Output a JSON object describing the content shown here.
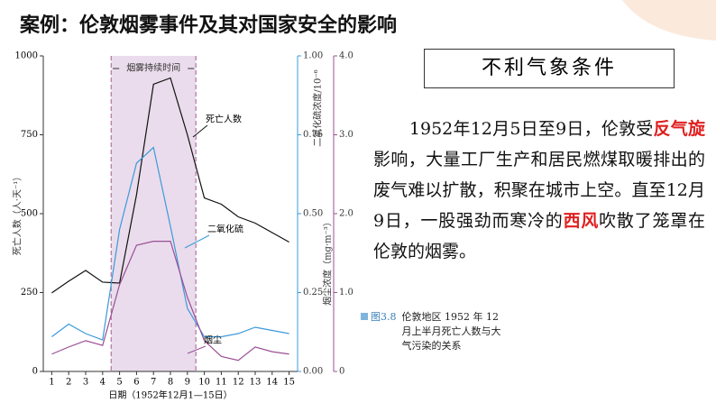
{
  "slide_title": "案例：伦敦烟雾事件及其对国家安全的影响",
  "box_title": "不利气象条件",
  "paragraph": [
    {
      "text": "1952年12月5日至9日，伦敦受",
      "red": false
    },
    {
      "text": "反气旋",
      "red": true
    },
    {
      "text": "影响，大量工厂生产和居民燃煤取暖排出的废气难以扩散，积聚在城市上空。直至12月9日，一股强劲而寒冷的",
      "red": false
    },
    {
      "text": "西风",
      "red": true
    },
    {
      "text": "吹散了笼罩在伦敦的烟雾。",
      "red": false
    }
  ],
  "caption": {
    "number": "图3.8",
    "text": "伦敦地区 1952 年 12 月上半月死亡人数与大气污染的关系"
  },
  "chart_data": {
    "type": "line",
    "x_label": "日期（1952年12月1—15日）",
    "y_label": "死亡人数（人·天⁻¹）",
    "y2_label": "二氧化硫浓度/10⁻⁶",
    "y3_label": "烟尘浓度（mg·m⁻³）",
    "shade_label": "烟雾持续时间",
    "shade": [
      4.5,
      9.5
    ],
    "shade_color": "#eadcec",
    "x": [
      1,
      2,
      3,
      4,
      5,
      6,
      7,
      8,
      9,
      10,
      11,
      12,
      13,
      14,
      15
    ],
    "xlim": [
      0.5,
      15.5
    ],
    "xticks": [
      1,
      2,
      3,
      4,
      5,
      6,
      7,
      8,
      9,
      10,
      11,
      12,
      13,
      14,
      15
    ],
    "ylim": [
      0,
      1000
    ],
    "yticks": [
      0,
      250,
      500,
      750,
      1000
    ],
    "y2lim": [
      0,
      1
    ],
    "y2ticks": [
      {
        "value": 0,
        "label": "0.00"
      },
      {
        "value": 0.25,
        "label": "0.25"
      },
      {
        "value": 0.5,
        "label": "0.50"
      },
      {
        "value": 0.75,
        "label": "0.75"
      },
      {
        "value": 1,
        "label": "1.00"
      }
    ],
    "y2_color": "#3b9ad9",
    "y3lim": [
      0,
      4
    ],
    "y3ticks": [
      0,
      {
        "value": 1,
        "label": "1.0"
      },
      {
        "value": 2,
        "label": "2.0"
      },
      {
        "value": 3,
        "label": "3.0"
      },
      {
        "value": 4,
        "label": "4.0"
      }
    ],
    "y3_color": "#9b4f96",
    "series": [
      {
        "name": "死亡人数",
        "color": "#111111",
        "values": [
          249,
          286,
          320,
          283,
          280,
          560,
          910,
          930,
          750,
          550,
          530,
          490,
          470,
          440,
          410
        ]
      },
      {
        "name": "二氧化硫",
        "color": "#3b9ad9",
        "axis": "y2",
        "values": [
          0.11,
          0.15,
          0.12,
          0.1,
          0.45,
          0.66,
          0.71,
          0.46,
          0.2,
          0.11,
          0.11,
          0.12,
          0.14,
          0.13,
          0.12
        ]
      },
      {
        "name": "烟尘",
        "color": "#9b4f96",
        "axis": "y3",
        "values": [
          0.22,
          0.31,
          0.39,
          0.33,
          1.1,
          1.6,
          1.65,
          1.65,
          0.94,
          0.39,
          0.19,
          0.14,
          0.31,
          0.25,
          0.22
        ]
      }
    ]
  }
}
